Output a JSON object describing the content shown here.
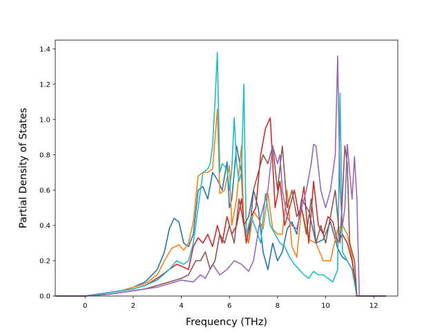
{
  "chart_data": {
    "type": "line",
    "title": "",
    "xlabel": "Frequency (THz)",
    "ylabel": "Partial Density of States",
    "xlim": [
      -1.24,
      13.0
    ],
    "ylim": [
      0.0,
      1.45
    ],
    "xticks": [
      0,
      2,
      4,
      6,
      8,
      10,
      12
    ],
    "yticks": [
      0.0,
      0.2,
      0.4,
      0.6,
      0.8,
      1.0,
      1.2,
      1.4
    ],
    "xtick_labels": [
      "0",
      "2",
      "4",
      "6",
      "8",
      "10",
      "12"
    ],
    "ytick_labels": [
      "0.0",
      "0.2",
      "0.4",
      "0.6",
      "0.8",
      "1.0",
      "1.2",
      "1.4"
    ],
    "grid": false,
    "legend": false,
    "series": [
      {
        "color": "#1f77b4",
        "x": [
          -1.2,
          0.0,
          1.0,
          1.5,
          2.0,
          2.5,
          3.0,
          3.3,
          3.5,
          3.7,
          3.9,
          4.1,
          4.3,
          4.5,
          4.7,
          4.9,
          5.1,
          5.3,
          5.5,
          5.7,
          5.9,
          6.0,
          6.1,
          6.3,
          6.5,
          6.6,
          6.8,
          7.0,
          7.2,
          7.4,
          7.6,
          7.8,
          8.0,
          8.2,
          8.4,
          8.6,
          8.8,
          9.0,
          9.3,
          9.6,
          9.9,
          10.2,
          10.5,
          10.7,
          10.9,
          11.1,
          11.3,
          11.5,
          12.5
        ],
        "y": [
          0.0,
          0.0,
          0.02,
          0.03,
          0.05,
          0.08,
          0.15,
          0.25,
          0.38,
          0.44,
          0.42,
          0.3,
          0.28,
          0.35,
          0.6,
          0.62,
          0.55,
          0.7,
          0.66,
          0.6,
          0.76,
          0.5,
          0.55,
          0.85,
          0.7,
          0.4,
          0.3,
          0.6,
          0.5,
          0.25,
          0.15,
          0.3,
          0.2,
          0.25,
          0.38,
          0.42,
          0.35,
          0.55,
          0.48,
          0.3,
          0.32,
          0.42,
          0.27,
          0.22,
          0.2,
          0.15,
          0.0,
          0.0,
          0.0
        ]
      },
      {
        "color": "#ff7f0e",
        "x": [
          -1.2,
          0.0,
          1.0,
          1.5,
          2.0,
          2.5,
          3.0,
          3.3,
          3.6,
          3.9,
          4.1,
          4.3,
          4.5,
          4.7,
          4.9,
          5.1,
          5.3,
          5.5,
          5.6,
          5.8,
          6.0,
          6.1,
          6.3,
          6.5,
          6.6,
          6.8,
          7.0,
          7.2,
          7.4,
          7.6,
          7.8,
          8.0,
          8.2,
          8.4,
          8.6,
          8.8,
          9.0,
          9.3,
          9.6,
          9.9,
          10.2,
          10.5,
          10.7,
          10.9,
          11.1,
          11.3,
          11.5,
          12.5
        ],
        "y": [
          0.0,
          0.0,
          0.02,
          0.03,
          0.05,
          0.07,
          0.12,
          0.2,
          0.27,
          0.29,
          0.26,
          0.3,
          0.42,
          0.68,
          0.7,
          0.7,
          0.72,
          1.06,
          0.58,
          0.6,
          0.74,
          0.4,
          0.55,
          0.85,
          0.4,
          0.3,
          0.48,
          0.44,
          0.38,
          0.58,
          0.38,
          0.35,
          0.35,
          0.6,
          0.28,
          0.22,
          0.5,
          0.32,
          0.3,
          0.2,
          0.2,
          0.38,
          0.4,
          0.35,
          0.22,
          0.0,
          0.0,
          0.0
        ]
      },
      {
        "color": "#d62728",
        "x": [
          -1.2,
          0.0,
          1.0,
          2.0,
          2.5,
          3.0,
          3.4,
          3.8,
          4.0,
          4.3,
          4.5,
          4.7,
          4.9,
          5.1,
          5.3,
          5.5,
          5.7,
          5.9,
          6.1,
          6.3,
          6.5,
          6.7,
          6.9,
          7.1,
          7.3,
          7.5,
          7.7,
          7.9,
          8.1,
          8.3,
          8.5,
          8.7,
          8.9,
          9.1,
          9.3,
          9.5,
          9.7,
          9.9,
          10.1,
          10.3,
          10.5,
          10.7,
          10.9,
          11.1,
          11.3,
          11.5,
          12.5
        ],
        "y": [
          0.0,
          0.0,
          0.02,
          0.04,
          0.06,
          0.1,
          0.14,
          0.18,
          0.17,
          0.15,
          0.28,
          0.33,
          0.3,
          0.35,
          0.28,
          0.4,
          0.3,
          0.45,
          0.35,
          0.4,
          0.55,
          0.3,
          0.45,
          0.5,
          0.8,
          0.95,
          1.01,
          0.5,
          0.65,
          0.4,
          0.5,
          0.6,
          0.45,
          0.62,
          0.3,
          0.65,
          0.4,
          0.35,
          0.45,
          0.42,
          0.3,
          0.35,
          0.3,
          0.2,
          0.0,
          0.0,
          0.0
        ]
      },
      {
        "color": "#17becf",
        "x": [
          -1.2,
          0.0,
          1.0,
          2.0,
          2.5,
          3.0,
          3.5,
          3.8,
          4.1,
          4.3,
          4.5,
          4.7,
          4.9,
          5.1,
          5.2,
          5.3,
          5.4,
          5.5,
          5.6,
          5.7,
          5.9,
          6.0,
          6.1,
          6.2,
          6.3,
          6.4,
          6.5,
          6.6,
          6.7,
          6.9,
          7.1,
          7.3,
          7.5,
          7.7,
          7.9,
          8.1,
          8.3,
          8.5,
          8.7,
          8.9,
          9.1,
          9.3,
          9.5,
          9.7,
          9.9,
          10.1,
          10.3,
          10.5,
          10.6,
          10.7,
          10.9,
          11.1,
          11.3,
          11.5,
          12.5
        ],
        "y": [
          0.0,
          0.0,
          0.02,
          0.04,
          0.06,
          0.09,
          0.15,
          0.2,
          0.18,
          0.2,
          0.3,
          0.5,
          0.7,
          0.72,
          0.75,
          0.85,
          1.1,
          1.38,
          0.7,
          0.75,
          0.72,
          0.6,
          0.72,
          1.01,
          0.75,
          0.65,
          0.7,
          1.2,
          0.35,
          0.45,
          0.38,
          0.3,
          0.58,
          0.4,
          0.35,
          0.3,
          0.28,
          0.22,
          0.18,
          0.15,
          0.12,
          0.1,
          0.14,
          0.12,
          0.12,
          0.1,
          0.08,
          0.15,
          1.15,
          0.25,
          0.2,
          0.15,
          0.0,
          0.0,
          0.0
        ]
      },
      {
        "color": "#8c564b",
        "x": [
          -1.2,
          0.0,
          1.0,
          2.0,
          2.5,
          3.0,
          3.5,
          4.0,
          4.3,
          4.6,
          4.8,
          5.0,
          5.2,
          5.4,
          5.6,
          5.8,
          6.0,
          6.2,
          6.4,
          6.6,
          6.8,
          7.0,
          7.2,
          7.4,
          7.6,
          7.8,
          8.0,
          8.2,
          8.4,
          8.6,
          8.8,
          9.0,
          9.2,
          9.4,
          9.6,
          9.8,
          10.0,
          10.2,
          10.4,
          10.6,
          10.8,
          10.9,
          11.0,
          11.2,
          11.3,
          11.5,
          12.5
        ],
        "y": [
          0.0,
          0.0,
          0.01,
          0.03,
          0.04,
          0.06,
          0.08,
          0.1,
          0.12,
          0.2,
          0.2,
          0.25,
          0.15,
          0.2,
          0.35,
          0.3,
          0.4,
          0.3,
          0.55,
          0.4,
          0.45,
          0.6,
          0.7,
          0.8,
          0.75,
          0.85,
          0.6,
          0.85,
          0.5,
          0.6,
          0.45,
          0.5,
          0.35,
          0.55,
          0.3,
          0.4,
          0.3,
          0.45,
          0.6,
          0.3,
          0.85,
          0.75,
          0.3,
          0.2,
          0.0,
          0.0,
          0.0
        ]
      },
      {
        "color": "#9467bd",
        "x": [
          -1.2,
          0.0,
          1.0,
          2.0,
          2.5,
          3.0,
          3.5,
          4.0,
          4.5,
          4.8,
          5.0,
          5.3,
          5.6,
          5.9,
          6.2,
          6.5,
          6.8,
          7.0,
          7.3,
          7.6,
          7.8,
          8.0,
          8.1,
          8.2,
          8.4,
          8.6,
          8.8,
          9.0,
          9.2,
          9.4,
          9.5,
          9.6,
          9.8,
          10.0,
          10.2,
          10.4,
          10.5,
          10.6,
          10.7,
          10.8,
          10.9,
          11.0,
          11.1,
          11.2,
          11.3,
          11.4,
          11.5,
          12.5
        ],
        "y": [
          0.0,
          0.0,
          0.01,
          0.03,
          0.04,
          0.05,
          0.07,
          0.09,
          0.08,
          0.12,
          0.1,
          0.18,
          0.12,
          0.15,
          0.2,
          0.18,
          0.14,
          0.2,
          0.45,
          0.6,
          0.85,
          0.75,
          0.8,
          0.6,
          0.45,
          0.4,
          0.38,
          0.5,
          0.6,
          0.75,
          0.86,
          0.85,
          0.6,
          0.5,
          0.6,
          0.8,
          1.36,
          0.6,
          0.4,
          0.5,
          0.86,
          0.7,
          0.55,
          0.79,
          0.55,
          0.0,
          0.0,
          0.0
        ]
      }
    ]
  }
}
